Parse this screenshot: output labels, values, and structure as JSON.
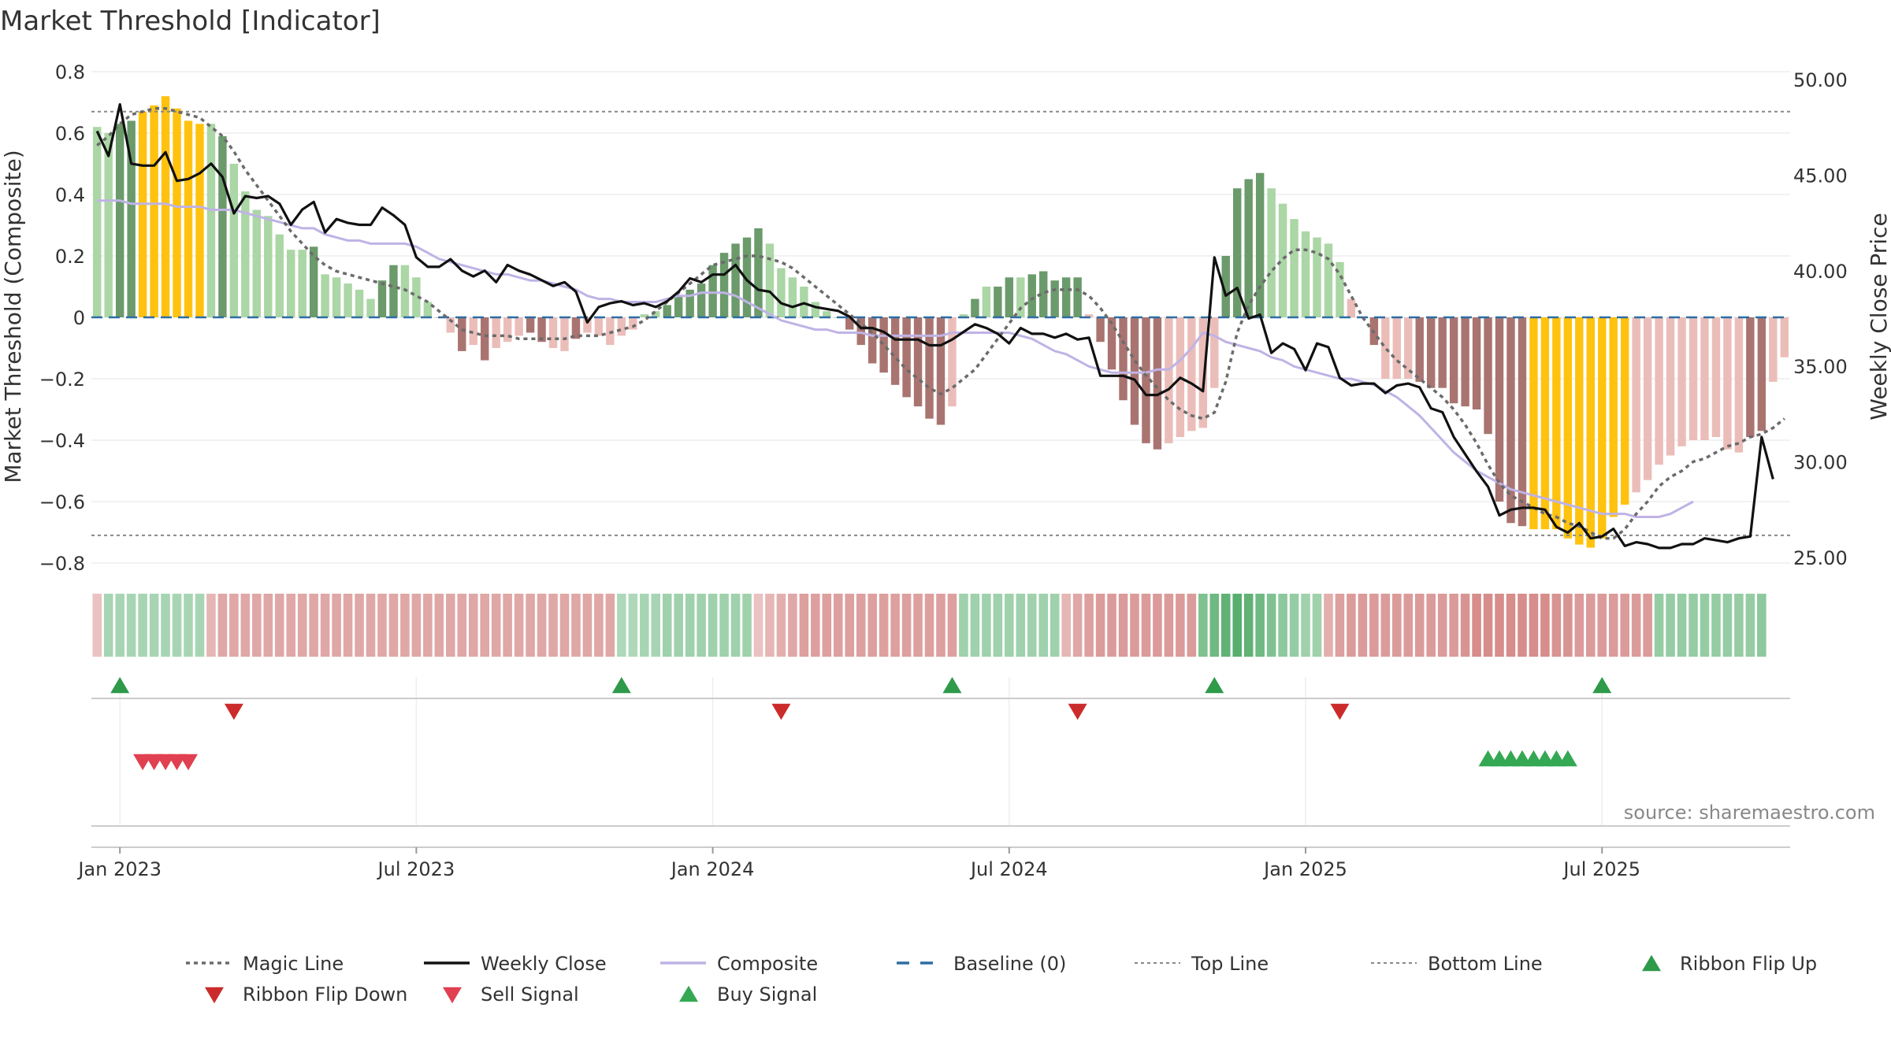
{
  "chart_data": {
    "type": "bar",
    "title": "Market Threshold [Indicator]",
    "source": "source: sharemaestro.com",
    "y_left": {
      "label": "Market Threshold (Composite)",
      "range": [
        -0.85,
        0.82
      ],
      "ticks": [
        "0.8",
        "0.6",
        "0.4",
        "0.2",
        "0",
        "−0.2",
        "−0.4",
        "−0.6",
        "−0.8"
      ],
      "tick_values": [
        0.8,
        0.6,
        0.4,
        0.2,
        0,
        -0.2,
        -0.4,
        -0.6,
        -0.8
      ]
    },
    "y_right": {
      "label": "Weekly Close Price",
      "range": [
        24.6,
        50.9
      ],
      "ticks": [
        "50.00",
        "45.00",
        "40.00",
        "35.00",
        "30.00",
        "25.00"
      ],
      "tick_values": [
        50,
        45,
        40,
        35,
        30,
        25
      ]
    },
    "x_ticks": [
      "Jan 2023",
      "Jul 2023",
      "Jan 2024",
      "Jul 2024",
      "Jan 2025",
      "Jul 2025"
    ],
    "x_tick_weeks": [
      2,
      28,
      54,
      80,
      106,
      132
    ],
    "top_line": 0.67,
    "bottom_line": -0.71,
    "baseline": 0,
    "composite": [
      0.62,
      0.6,
      0.63,
      0.64,
      0.67,
      0.69,
      0.72,
      0.68,
      0.64,
      0.63,
      0.63,
      0.59,
      0.5,
      0.41,
      0.35,
      0.33,
      0.27,
      0.22,
      0.22,
      0.23,
      0.14,
      0.13,
      0.11,
      0.09,
      0.06,
      0.12,
      0.17,
      0.17,
      0.13,
      0.05,
      0,
      -0.05,
      -0.11,
      -0.09,
      -0.14,
      -0.1,
      -0.08,
      -0.06,
      -0.05,
      -0.08,
      -0.1,
      -0.11,
      -0.07,
      -0.05,
      -0.06,
      -0.09,
      -0.06,
      -0.04,
      0.01,
      0.02,
      0.04,
      0.07,
      0.09,
      0.11,
      0.17,
      0.21,
      0.24,
      0.26,
      0.29,
      0.24,
      0.16,
      0.13,
      0.1,
      0.05,
      0.02,
      0,
      -0.04,
      -0.09,
      -0.15,
      -0.18,
      -0.22,
      -0.26,
      -0.29,
      -0.33,
      -0.35,
      -0.29,
      0.01,
      0.06,
      0.1,
      0.1,
      0.13,
      0.13,
      0.14,
      0.15,
      0.12,
      0.13,
      0.13,
      0.01,
      -0.08,
      -0.17,
      -0.27,
      -0.35,
      -0.41,
      -0.43,
      -0.41,
      -0.39,
      -0.37,
      -0.36,
      -0.23,
      0.2,
      0.42,
      0.45,
      0.47,
      0.42,
      0.37,
      0.32,
      0.28,
      0.26,
      0.24,
      0.18,
      0.06,
      0,
      -0.09,
      -0.2,
      -0.2,
      -0.2,
      -0.21,
      -0.23,
      -0.23,
      -0.28,
      -0.29,
      -0.3,
      -0.38,
      -0.6,
      -0.67,
      -0.68,
      -0.69,
      -0.69,
      -0.69,
      -0.72,
      -0.74,
      -0.75,
      -0.72,
      -0.65,
      -0.61,
      -0.57,
      -0.53,
      -0.48,
      -0.45,
      -0.42,
      -0.4,
      -0.4,
      -0.39,
      -0.43,
      -0.44,
      -0.39,
      -0.37,
      -0.21,
      -0.13
    ],
    "bar_state": [
      "lg",
      "lg",
      "dg",
      "dg",
      "y",
      "y",
      "y",
      "y",
      "y",
      "y",
      "lg",
      "dg",
      "lg",
      "lg",
      "lg",
      "lg",
      "lg",
      "lg",
      "lg",
      "dg",
      "lg",
      "lg",
      "lg",
      "lg",
      "lg",
      "dg",
      "dg",
      "lg",
      "lg",
      "lg",
      "lp",
      "lp",
      "dp",
      "lp",
      "dp",
      "lp",
      "lp",
      "lp",
      "dp",
      "dp",
      "lp",
      "lp",
      "dp",
      "lp",
      "lp",
      "lp",
      "lp",
      "lp",
      "lg",
      "lg",
      "dg",
      "dg",
      "dg",
      "dg",
      "dg",
      "dg",
      "dg",
      "dg",
      "dg",
      "lg",
      "lg",
      "lg",
      "lg",
      "lg",
      "lg",
      "lg",
      "dp",
      "dp",
      "dp",
      "dp",
      "dp",
      "dp",
      "dp",
      "dp",
      "dp",
      "lp",
      "lg",
      "dg",
      "lg",
      "dg",
      "dg",
      "lg",
      "dg",
      "dg",
      "dg",
      "dg",
      "dg",
      "lp",
      "dp",
      "dp",
      "dp",
      "dp",
      "dp",
      "dp",
      "lp",
      "lp",
      "lp",
      "lp",
      "lp",
      "dg",
      "dg",
      "dg",
      "dg",
      "lg",
      "lg",
      "lg",
      "lg",
      "lg",
      "lg",
      "lg",
      "lp",
      "dp",
      "dp",
      "lp",
      "lp",
      "lp",
      "dp",
      "dp",
      "dp",
      "dp",
      "dp",
      "dp",
      "dp",
      "dp",
      "dp",
      "dp",
      "y",
      "y",
      "y",
      "y",
      "y",
      "y",
      "y",
      "y",
      "y",
      "lp",
      "lp",
      "lp",
      "lp",
      "lp",
      "lp",
      "lp",
      "lp",
      "lp",
      "lp",
      "dp",
      "dp",
      "lp",
      "lp",
      "lp",
      "lp"
    ],
    "magic_line": [
      0.56,
      0.59,
      0.63,
      0.66,
      0.67,
      0.68,
      0.68,
      0.67,
      0.66,
      0.65,
      0.62,
      0.59,
      0.54,
      0.48,
      0.43,
      0.38,
      0.33,
      0.28,
      0.24,
      0.2,
      0.17,
      0.15,
      0.14,
      0.13,
      0.12,
      0.11,
      0.1,
      0.09,
      0.07,
      0.05,
      0.02,
      -0.01,
      -0.04,
      -0.05,
      -0.06,
      -0.06,
      -0.06,
      -0.07,
      -0.07,
      -0.07,
      -0.07,
      -0.07,
      -0.06,
      -0.06,
      -0.06,
      -0.05,
      -0.04,
      -0.03,
      -0.01,
      0.02,
      0.05,
      0.08,
      0.11,
      0.14,
      0.17,
      0.18,
      0.19,
      0.2,
      0.2,
      0.19,
      0.18,
      0.16,
      0.13,
      0.1,
      0.07,
      0.04,
      0.01,
      -0.02,
      -0.05,
      -0.09,
      -0.13,
      -0.17,
      -0.2,
      -0.23,
      -0.25,
      -0.23,
      -0.2,
      -0.17,
      -0.12,
      -0.07,
      -0.02,
      0.03,
      0.06,
      0.08,
      0.09,
      0.09,
      0.09,
      0.07,
      0.03,
      -0.02,
      -0.08,
      -0.14,
      -0.19,
      -0.23,
      -0.27,
      -0.3,
      -0.32,
      -0.33,
      -0.31,
      -0.21,
      -0.05,
      0.04,
      0.1,
      0.15,
      0.19,
      0.22,
      0.22,
      0.21,
      0.19,
      0.14,
      0.07,
      0,
      -0.05,
      -0.1,
      -0.14,
      -0.17,
      -0.2,
      -0.23,
      -0.26,
      -0.3,
      -0.35,
      -0.41,
      -0.48,
      -0.54,
      -0.58,
      -0.6,
      -0.62,
      -0.64,
      -0.65,
      -0.67,
      -0.68,
      -0.7,
      -0.72,
      -0.72,
      -0.69,
      -0.64,
      -0.6,
      -0.55,
      -0.52,
      -0.5,
      -0.47,
      -0.46,
      -0.44,
      -0.42,
      -0.41,
      -0.39,
      -0.38,
      -0.36,
      -0.33
    ],
    "composite_line": [
      0.38,
      0.38,
      0.38,
      0.37,
      0.37,
      0.37,
      0.37,
      0.36,
      0.36,
      0.36,
      0.35,
      0.35,
      0.35,
      0.34,
      0.33,
      0.32,
      0.31,
      0.3,
      0.29,
      0.29,
      0.27,
      0.26,
      0.25,
      0.25,
      0.24,
      0.24,
      0.24,
      0.24,
      0.23,
      0.21,
      0.19,
      0.18,
      0.17,
      0.16,
      0.15,
      0.14,
      0.14,
      0.13,
      0.12,
      0.12,
      0.11,
      0.1,
      0.09,
      0.07,
      0.06,
      0.06,
      0.05,
      0.05,
      0.05,
      0.05,
      0.06,
      0.07,
      0.07,
      0.08,
      0.08,
      0.08,
      0.07,
      0.05,
      0.03,
      0.01,
      -0.01,
      -0.02,
      -0.03,
      -0.04,
      -0.04,
      -0.05,
      -0.05,
      -0.05,
      -0.06,
      -0.06,
      -0.06,
      -0.06,
      -0.06,
      -0.06,
      -0.06,
      -0.05,
      -0.05,
      -0.05,
      -0.05,
      -0.05,
      -0.05,
      -0.06,
      -0.07,
      -0.09,
      -0.11,
      -0.12,
      -0.14,
      -0.16,
      -0.17,
      -0.18,
      -0.18,
      -0.18,
      -0.18,
      -0.17,
      -0.17,
      -0.14,
      -0.1,
      -0.05,
      -0.06,
      -0.08,
      -0.09,
      -0.1,
      -0.11,
      -0.13,
      -0.14,
      -0.16,
      -0.17,
      -0.18,
      -0.19,
      -0.2,
      -0.2,
      -0.21,
      -0.22,
      -0.24,
      -0.26,
      -0.29,
      -0.32,
      -0.36,
      -0.4,
      -0.44,
      -0.47,
      -0.5,
      -0.52,
      -0.54,
      -0.56,
      -0.57,
      -0.58,
      -0.59,
      -0.6,
      -0.61,
      -0.62,
      -0.63,
      -0.64,
      -0.64,
      -0.64,
      -0.65,
      -0.65,
      -0.65,
      -0.64,
      -0.62,
      -0.6
    ],
    "weekly_close": [
      47.3,
      46.0,
      48.7,
      45.6,
      45.5,
      45.5,
      46.2,
      44.7,
      44.8,
      45.1,
      45.6,
      44.9,
      43.0,
      43.9,
      43.8,
      43.9,
      43.5,
      42.4,
      43.2,
      43.6,
      42.0,
      42.7,
      42.5,
      42.4,
      42.4,
      43.3,
      42.9,
      42.4,
      40.7,
      40.2,
      40.2,
      40.6,
      40.0,
      39.7,
      40.0,
      39.4,
      40.3,
      40.0,
      39.8,
      39.5,
      39.2,
      39.4,
      38.9,
      37.3,
      38.1,
      38.3,
      38.4,
      38.2,
      38.3,
      38.1,
      38.4,
      38.9,
      39.6,
      39.4,
      39.8,
      39.8,
      40.3,
      39.5,
      39.0,
      38.9,
      38.3,
      38.1,
      38.3,
      38.1,
      38.0,
      37.9,
      37.6,
      37.0,
      37.0,
      36.8,
      36.4,
      36.4,
      36.4,
      36.1,
      36.1,
      36.4,
      36.8,
      37.2,
      37.0,
      36.7,
      36.2,
      37.0,
      36.7,
      36.7,
      36.5,
      36.7,
      36.4,
      36.5,
      34.5,
      34.5,
      34.5,
      34.3,
      33.5,
      33.5,
      33.8,
      34.4,
      34.1,
      33.7,
      40.7,
      38.7,
      39.1,
      37.5,
      37.7,
      35.7,
      36.2,
      35.9,
      34.8,
      36.2,
      36.0,
      34.4,
      34.0,
      34.1,
      34.1,
      33.6,
      34.0,
      34.1,
      33.9,
      32.8,
      32.6,
      31.3,
      30.4,
      29.5,
      28.7,
      27.2,
      27.5,
      27.6,
      27.6,
      27.5,
      26.6,
      26.3,
      26.8,
      26.0,
      26.1,
      26.5,
      25.6,
      25.8,
      25.7,
      25.5,
      25.5,
      25.7,
      25.7,
      26.0,
      25.9,
      25.8,
      26.0,
      26.1,
      31.3,
      29.1
    ],
    "ribbon": [
      -0.2,
      0.3,
      0.3,
      0.3,
      0.3,
      0.3,
      0.3,
      0.3,
      0.3,
      0.3,
      -0.3,
      -0.4,
      -0.4,
      -0.4,
      -0.4,
      -0.4,
      -0.4,
      -0.4,
      -0.4,
      -0.4,
      -0.4,
      -0.4,
      -0.4,
      -0.4,
      -0.4,
      -0.4,
      -0.4,
      -0.4,
      -0.4,
      -0.4,
      -0.4,
      -0.4,
      -0.4,
      -0.4,
      -0.4,
      -0.4,
      -0.4,
      -0.4,
      -0.4,
      -0.4,
      -0.4,
      -0.4,
      -0.4,
      -0.4,
      -0.4,
      -0.4,
      0.25,
      0.25,
      0.3,
      0.3,
      0.35,
      0.35,
      0.35,
      0.35,
      0.35,
      0.35,
      0.35,
      0.35,
      -0.2,
      -0.3,
      -0.35,
      -0.4,
      -0.45,
      -0.45,
      -0.45,
      -0.45,
      -0.45,
      -0.45,
      -0.45,
      -0.45,
      -0.45,
      -0.45,
      -0.45,
      -0.45,
      -0.45,
      -0.45,
      0.35,
      0.35,
      0.35,
      0.35,
      0.35,
      0.35,
      0.35,
      0.35,
      0.35,
      -0.3,
      -0.4,
      -0.45,
      -0.5,
      -0.5,
      -0.5,
      -0.5,
      -0.5,
      -0.5,
      -0.5,
      -0.5,
      -0.5,
      0.55,
      0.65,
      0.75,
      0.8,
      0.75,
      0.65,
      0.55,
      0.45,
      0.4,
      0.35,
      0.35,
      -0.35,
      -0.45,
      -0.5,
      -0.5,
      -0.5,
      -0.5,
      -0.5,
      -0.5,
      -0.5,
      -0.5,
      -0.5,
      -0.5,
      -0.55,
      -0.6,
      -0.6,
      -0.6,
      -0.6,
      -0.6,
      -0.6,
      -0.6,
      -0.55,
      -0.55,
      -0.5,
      -0.5,
      -0.5,
      -0.5,
      -0.5,
      -0.5,
      -0.5,
      0.4,
      0.4,
      0.4,
      0.4,
      0.4,
      0.4,
      0.4,
      0.4,
      0.4,
      0.45
    ],
    "ribbon_flip_up": [
      2,
      46,
      75,
      98,
      132
    ],
    "ribbon_flip_down": [
      12,
      60,
      86,
      109
    ],
    "sell_signals": [
      4,
      5,
      6,
      7,
      8
    ],
    "buy_signals": [
      122,
      123,
      124,
      125,
      126,
      127,
      128,
      129
    ],
    "colors": {
      "dark_green": "#6b9a6b",
      "light_green": "#abd6a5",
      "yellow": "#ffc20e",
      "dark_red": "#a97470",
      "light_pink": "#ebbdb9",
      "magic_line": "#6b6b6b",
      "weekly_close": "#111111",
      "composite": "#bfb3e5",
      "baseline": "#2e6da4",
      "top_bottom": "#888888",
      "flip_up": "#2e9a4a",
      "flip_down": "#cc2b2b",
      "sell": "#e04050",
      "buy": "#34a853"
    },
    "legend": [
      {
        "label": "Magic Line",
        "kind": "dotted",
        "color": "#6b6b6b"
      },
      {
        "label": "Weekly Close",
        "kind": "solid",
        "color": "#111111"
      },
      {
        "label": "Composite",
        "kind": "solid",
        "color": "#bfb3e5"
      },
      {
        "label": "Baseline (0)",
        "kind": "dashed",
        "color": "#2e6da4"
      },
      {
        "label": "Top Line",
        "kind": "dotted-thin",
        "color": "#888888"
      },
      {
        "label": "Bottom Line",
        "kind": "dotted-thin",
        "color": "#888888"
      },
      {
        "label": "Ribbon Flip Up",
        "kind": "tri-up",
        "color": "#2e9a4a"
      },
      {
        "label": "Ribbon Flip Down",
        "kind": "tri-down",
        "color": "#cc2b2b"
      },
      {
        "label": "Sell Signal",
        "kind": "tri-down",
        "color": "#e04050"
      },
      {
        "label": "Buy Signal",
        "kind": "tri-up",
        "color": "#34a853"
      }
    ]
  }
}
